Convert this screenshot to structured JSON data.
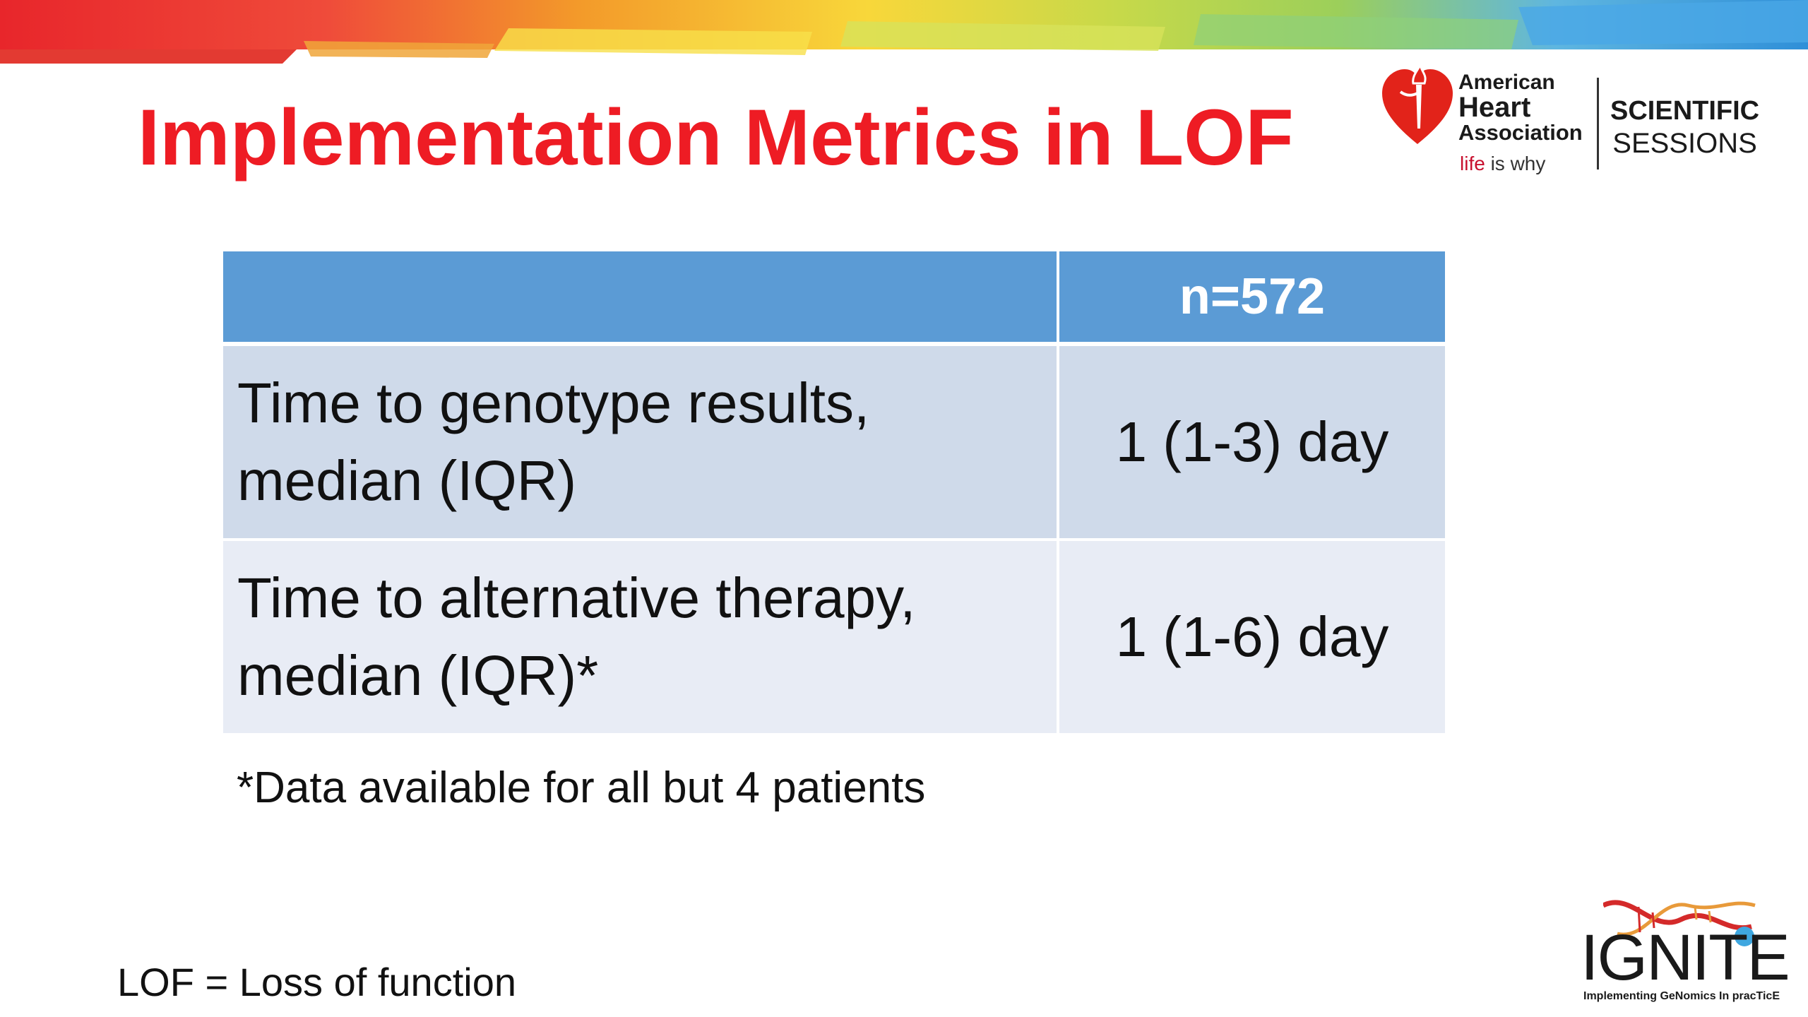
{
  "slide": {
    "title": "Implementation Metrics in LOF",
    "accent_color": "#ee1c24",
    "header_color": "#5b9bd5"
  },
  "aha_logo": {
    "org_line1": "American",
    "org_line2": "Heart",
    "org_line3": "Association",
    "tagline_red": "life",
    "tagline_rest": " is why",
    "sessions_line1": "SCIENTIFIC",
    "sessions_line2": "SESSIONS",
    "icon": "heart-torch-icon"
  },
  "table": {
    "header": [
      "",
      "n=572"
    ],
    "rows": [
      {
        "label_line1": "Time to genotype results,",
        "label_line2": "median (IQR)",
        "value": "1 (1-3) day"
      },
      {
        "label_line1": "Time to alternative therapy,",
        "label_line2": "median (IQR)*",
        "value": "1 (1-6) day"
      }
    ]
  },
  "footnote": "*Data available for all but 4 patients",
  "abbreviation": "LOF = Loss of function",
  "ignite_logo": {
    "word": "IGNITE",
    "subtitle": "Implementing GeNomics In pracTicE",
    "icon": "dna-helix-icon"
  }
}
